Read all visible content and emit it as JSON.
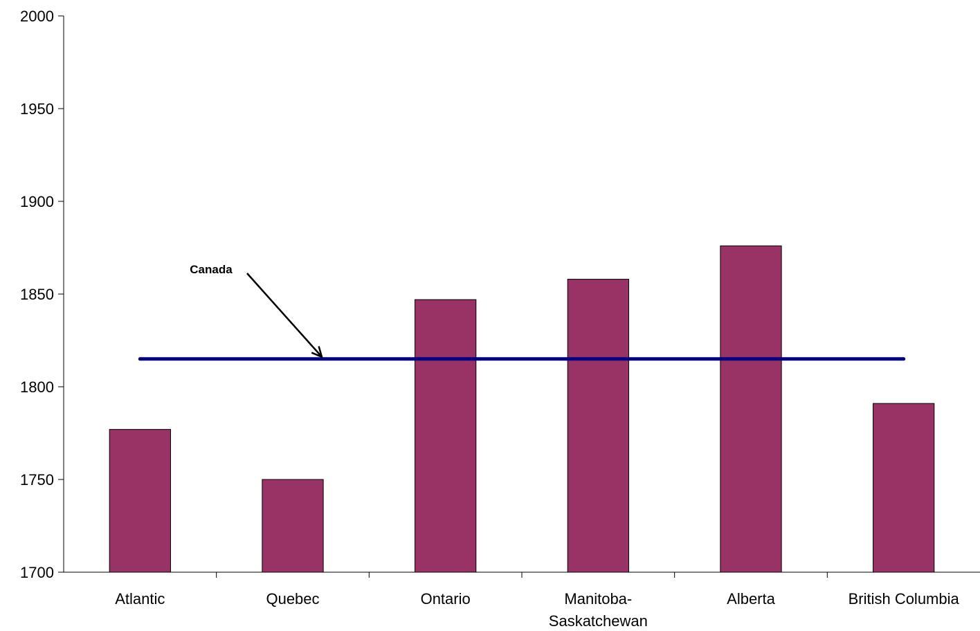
{
  "chart_data": {
    "type": "bar",
    "categories": [
      "Atlantic",
      "Quebec",
      "Ontario",
      "Manitoba-Saskatchewan",
      "Alberta",
      "British Columbia"
    ],
    "category_lines": [
      [
        "Atlantic"
      ],
      [
        "Quebec"
      ],
      [
        "Ontario"
      ],
      [
        "Manitoba-",
        "Saskatchewan"
      ],
      [
        "Alberta"
      ],
      [
        "British Columbia"
      ]
    ],
    "values": [
      1777,
      1750,
      1847,
      1858,
      1876,
      1791
    ],
    "reference_line": {
      "label": "Canada",
      "value": 1815
    },
    "ylim": [
      1700,
      2000
    ],
    "yticks": [
      1700,
      1750,
      1800,
      1850,
      1900,
      1950,
      2000
    ],
    "title": "",
    "xlabel": "",
    "ylabel": "",
    "grid": false,
    "colors": {
      "bar": "#993366",
      "reference_line": "#000080",
      "axis": "#000000"
    }
  }
}
